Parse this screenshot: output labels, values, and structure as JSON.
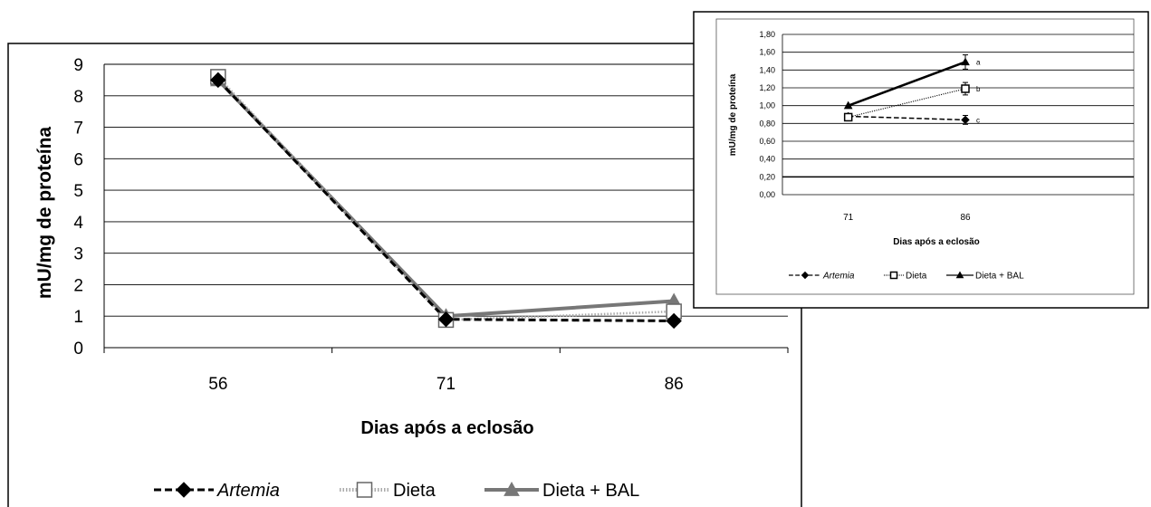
{
  "chart_data": [
    {
      "type": "line",
      "xlabel": "Dias após a eclosão",
      "ylabel": "mU/mg de proteína",
      "categories": [
        "56",
        "71",
        "86"
      ],
      "ylim": [
        0,
        9
      ],
      "yticks": [
        "0",
        "1",
        "2",
        "3",
        "4",
        "5",
        "6",
        "7",
        "8",
        "9"
      ],
      "grid": true,
      "legend_position": "bottom",
      "series": [
        {
          "name": "Artemia",
          "values": [
            8.5,
            0.9,
            0.85
          ],
          "color": "#000000",
          "style": "dashed",
          "marker": "diamond"
        },
        {
          "name": "Dieta",
          "values": [
            8.6,
            0.88,
            1.15
          ],
          "color": "#aaaaaa",
          "style": "dotted",
          "marker": "square"
        },
        {
          "name": "Dieta + BAL",
          "values": [
            8.5,
            1.0,
            1.48
          ],
          "color": "#777777",
          "style": "solid",
          "marker": "triangle"
        }
      ]
    },
    {
      "type": "line",
      "xlabel": "Dias após a eclosão",
      "ylabel": "mU/mg de proteína",
      "categories": [
        "71",
        "86"
      ],
      "ylim": [
        0,
        1.8
      ],
      "yticks": [
        "0,00",
        "0,20",
        "0,40",
        "0,60",
        "0,80",
        "1,00",
        "1,20",
        "1,40",
        "1,60",
        "1,80"
      ],
      "grid": true,
      "legend_position": "bottom",
      "series": [
        {
          "name": "Artemia",
          "values": [
            0.88,
            0.84
          ],
          "errors": [
            null,
            0.05
          ],
          "label": "c",
          "style": "dashed",
          "marker": "diamond"
        },
        {
          "name": "Dieta",
          "values": [
            0.87,
            1.19
          ],
          "errors": [
            null,
            0.07
          ],
          "label": "b",
          "style": "dotted",
          "marker": "square"
        },
        {
          "name": "Dieta + BAL",
          "values": [
            1.0,
            1.49
          ],
          "errors": [
            null,
            0.08
          ],
          "label": "a",
          "style": "solid",
          "marker": "triangle"
        }
      ]
    }
  ]
}
